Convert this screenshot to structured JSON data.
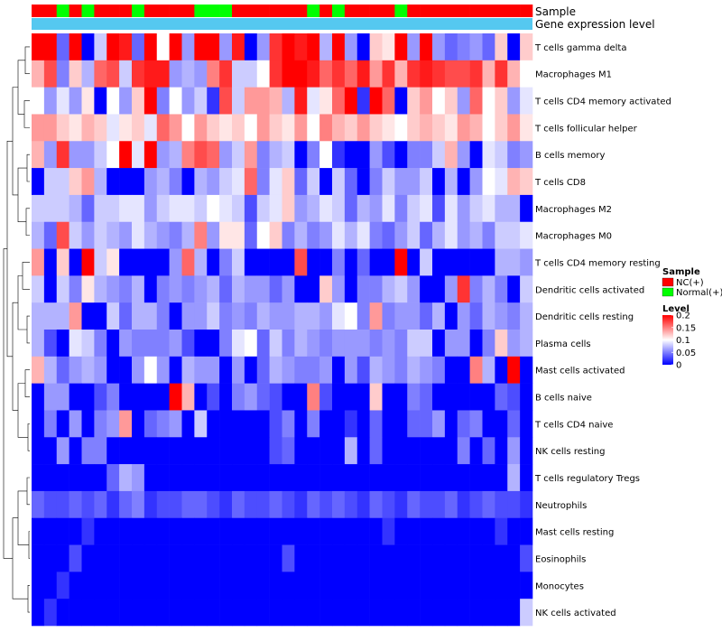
{
  "chart_data": {
    "type": "heatmap",
    "annotation_titles": [
      "Sample",
      "Gene expression level"
    ],
    "rows": [
      "T cells gamma delta",
      "Macrophages M1",
      "T cells CD4 memory activated",
      "T cells follicular helper",
      "B cells memory",
      "T cells CD8",
      "Macrophages M2",
      "Macrophages M0",
      "T cells CD4 memory resting",
      "Dendritic cells activated",
      "Dendritic cells resting",
      "Plasma cells",
      "Mast cells activated",
      "B cells naive",
      "T cells CD4 naive",
      "NK cells resting",
      "T cells regulatory  Tregs",
      "Neutrophils",
      "Mast cells resting",
      "Eosinophils",
      "Monocytes",
      "NK cells activated"
    ],
    "n_columns": 40,
    "sample_groups": [
      "NC(+)",
      "NC(+)",
      "Normal(+)",
      "NC(+)",
      "Normal(+)",
      "NC(+)",
      "NC(+)",
      "NC(+)",
      "Normal(+)",
      "NC(+)",
      "NC(+)",
      "NC(+)",
      "NC(+)",
      "Normal(+)",
      "Normal(+)",
      "Normal(+)",
      "NC(+)",
      "NC(+)",
      "NC(+)",
      "NC(+)",
      "NC(+)",
      "NC(+)",
      "Normal(+)",
      "NC(+)",
      "Normal(+)",
      "NC(+)",
      "NC(+)",
      "NC(+)",
      "NC(+)",
      "Normal(+)",
      "NC(+)",
      "NC(+)",
      "NC(+)",
      "NC(+)",
      "NC(+)",
      "NC(+)",
      "NC(+)",
      "NC(+)",
      "NC(+)",
      "NC(+)"
    ],
    "values": [
      [
        0.22,
        0.21,
        0.04,
        0.22,
        0.0,
        0.08,
        0.21,
        0.19,
        0.04,
        0.21,
        0.1,
        0.22,
        0.06,
        0.22,
        0.2,
        0.06,
        0.19,
        0.0,
        0.06,
        0.18,
        0.2,
        0.19,
        0.22,
        0.07,
        0.21,
        0.06,
        0.0,
        0.12,
        0.11,
        0.2,
        0.06,
        0.22,
        0.06,
        0.04,
        0.05,
        0.06,
        0.04,
        0.12,
        0.0,
        0.12
      ],
      [
        0.13,
        0.17,
        0.05,
        0.12,
        0.07,
        0.16,
        0.17,
        0.08,
        0.18,
        0.19,
        0.19,
        0.06,
        0.07,
        0.06,
        0.15,
        0.18,
        0.08,
        0.08,
        0.1,
        0.18,
        0.2,
        0.22,
        0.19,
        0.16,
        0.18,
        0.16,
        0.19,
        0.14,
        0.18,
        0.13,
        0.18,
        0.19,
        0.18,
        0.17,
        0.17,
        0.18,
        0.13,
        0.18,
        0.13,
        0.1
      ],
      [
        0.1,
        0.06,
        0.09,
        0.06,
        0.11,
        0.0,
        0.1,
        0.06,
        0.12,
        0.23,
        0.05,
        0.1,
        0.06,
        0.08,
        0.02,
        0.17,
        0.08,
        0.14,
        0.14,
        0.13,
        0.07,
        0.19,
        0.09,
        0.11,
        0.16,
        0.22,
        0.02,
        0.24,
        0.16,
        0.0,
        0.12,
        0.14,
        0.1,
        0.12,
        0.06,
        0.16,
        0.1,
        0.12,
        0.06,
        0.09
      ],
      [
        0.14,
        0.14,
        0.12,
        0.11,
        0.13,
        0.12,
        0.09,
        0.11,
        0.12,
        0.09,
        0.16,
        0.14,
        0.1,
        0.14,
        0.12,
        0.11,
        0.12,
        0.1,
        0.14,
        0.12,
        0.11,
        0.14,
        0.1,
        0.15,
        0.13,
        0.12,
        0.14,
        0.12,
        0.11,
        0.1,
        0.12,
        0.13,
        0.12,
        0.11,
        0.14,
        0.13,
        0.1,
        0.12,
        0.14,
        0.11
      ],
      [
        0.13,
        0.06,
        0.18,
        0.06,
        0.06,
        0.08,
        0.1,
        0.22,
        0.09,
        0.23,
        0.06,
        0.07,
        0.15,
        0.17,
        0.16,
        0.06,
        0.08,
        0.14,
        0.05,
        0.07,
        0.08,
        0.0,
        0.05,
        0.1,
        0.02,
        0.0,
        0.0,
        0.06,
        0.03,
        0.0,
        0.05,
        0.05,
        0.08,
        0.13,
        0.06,
        0.0,
        0.09,
        0.08,
        0.05,
        0.06
      ],
      [
        0.0,
        0.08,
        0.08,
        0.12,
        0.14,
        0.07,
        0.0,
        0.0,
        0.0,
        0.06,
        0.07,
        0.05,
        0.0,
        0.07,
        0.06,
        0.08,
        0.09,
        0.16,
        0.05,
        0.09,
        0.12,
        0.04,
        0.08,
        0.0,
        0.08,
        0.04,
        0.0,
        0.05,
        0.08,
        0.06,
        0.06,
        0.08,
        0.0,
        0.07,
        0.0,
        0.06,
        0.1,
        0.09,
        0.13,
        0.12
      ],
      [
        0.08,
        0.08,
        0.08,
        0.07,
        0.04,
        0.08,
        0.08,
        0.09,
        0.09,
        0.06,
        0.08,
        0.09,
        0.09,
        0.08,
        0.1,
        0.09,
        0.08,
        0.03,
        0.08,
        0.09,
        0.12,
        0.06,
        0.07,
        0.09,
        0.08,
        0.04,
        0.07,
        0.06,
        0.09,
        0.05,
        0.08,
        0.09,
        0.03,
        0.09,
        0.06,
        0.08,
        0.09,
        0.07,
        0.07,
        0.0
      ],
      [
        0.07,
        0.04,
        0.17,
        0.08,
        0.06,
        0.08,
        0.07,
        0.06,
        0.09,
        0.07,
        0.06,
        0.05,
        0.07,
        0.15,
        0.06,
        0.11,
        0.11,
        0.04,
        0.1,
        0.12,
        0.05,
        0.07,
        0.05,
        0.06,
        0.09,
        0.07,
        0.09,
        0.05,
        0.04,
        0.06,
        0.08,
        0.04,
        0.07,
        0.09,
        0.06,
        0.07,
        0.05,
        0.08,
        0.08,
        0.09
      ],
      [
        0.14,
        0.0,
        0.12,
        0.0,
        0.2,
        0.08,
        0.11,
        0.0,
        0.0,
        0.0,
        0.0,
        0.06,
        0.16,
        0.07,
        0.0,
        0.05,
        0.08,
        0.0,
        0.0,
        0.0,
        0.0,
        0.17,
        0.0,
        0.0,
        0.05,
        0.0,
        0.04,
        0.0,
        0.0,
        0.2,
        0.0,
        0.08,
        0.0,
        0.0,
        0.0,
        0.0,
        0.0,
        0.07,
        0.07,
        0.06
      ],
      [
        0.08,
        0.0,
        0.08,
        0.05,
        0.11,
        0.07,
        0.06,
        0.05,
        0.07,
        0.0,
        0.05,
        0.06,
        0.05,
        0.06,
        0.07,
        0.04,
        0.07,
        0.06,
        0.06,
        0.04,
        0.06,
        0.0,
        0.0,
        0.12,
        0.06,
        0.0,
        0.05,
        0.05,
        0.07,
        0.08,
        0.06,
        0.0,
        0.0,
        0.06,
        0.18,
        0.05,
        0.07,
        0.05,
        0.0,
        0.08
      ],
      [
        0.07,
        0.07,
        0.07,
        0.14,
        0.0,
        0.0,
        0.08,
        0.04,
        0.07,
        0.07,
        0.05,
        0.0,
        0.06,
        0.06,
        0.08,
        0.05,
        0.06,
        0.05,
        0.07,
        0.06,
        0.06,
        0.07,
        0.07,
        0.06,
        0.09,
        0.1,
        0.05,
        0.14,
        0.05,
        0.06,
        0.06,
        0.04,
        0.07,
        0.0,
        0.06,
        0.04,
        0.07,
        0.06,
        0.05,
        0.07
      ],
      [
        0.07,
        0.03,
        0.0,
        0.09,
        0.08,
        0.05,
        0.0,
        0.06,
        0.05,
        0.05,
        0.05,
        0.06,
        0.03,
        0.0,
        0.0,
        0.05,
        0.09,
        0.1,
        0.04,
        0.08,
        0.05,
        0.07,
        0.06,
        0.05,
        0.06,
        0.06,
        0.06,
        0.05,
        0.06,
        0.05,
        0.08,
        0.08,
        0.0,
        0.06,
        0.06,
        0.0,
        0.05,
        0.12,
        0.06,
        0.07
      ],
      [
        0.13,
        0.07,
        0.04,
        0.06,
        0.07,
        0.06,
        0.0,
        0.0,
        0.06,
        0.1,
        0.06,
        0.0,
        0.07,
        0.06,
        0.06,
        0.0,
        0.06,
        0.0,
        0.04,
        0.07,
        0.06,
        0.05,
        0.05,
        0.06,
        0.0,
        0.06,
        0.03,
        0.07,
        0.06,
        0.05,
        0.07,
        0.06,
        0.05,
        0.0,
        0.0,
        0.15,
        0.07,
        0.0,
        0.21,
        0.0
      ],
      [
        0.0,
        0.06,
        0.06,
        0.0,
        0.0,
        0.03,
        0.05,
        0.0,
        0.0,
        0.0,
        0.0,
        0.22,
        0.13,
        0.0,
        0.03,
        0.0,
        0.05,
        0.06,
        0.04,
        0.03,
        0.0,
        0.0,
        0.15,
        0.03,
        0.0,
        0.0,
        0.0,
        0.12,
        0.0,
        0.0,
        0.05,
        0.04,
        0.0,
        0.0,
        0.0,
        0.0,
        0.0,
        0.04,
        0.03,
        0.0
      ],
      [
        0.0,
        0.05,
        0.0,
        0.06,
        0.0,
        0.05,
        0.06,
        0.14,
        0.0,
        0.04,
        0.05,
        0.06,
        0.0,
        0.08,
        0.0,
        0.0,
        0.0,
        0.0,
        0.0,
        0.03,
        0.05,
        0.0,
        0.05,
        0.0,
        0.0,
        0.02,
        0.0,
        0.04,
        0.0,
        0.0,
        0.04,
        0.04,
        0.06,
        0.0,
        0.04,
        0.05,
        0.0,
        0.0,
        0.04,
        0.0
      ],
      [
        0.0,
        0.0,
        0.06,
        0.0,
        0.05,
        0.05,
        0.0,
        0.0,
        0.0,
        0.0,
        0.0,
        0.0,
        0.0,
        0.0,
        0.0,
        0.0,
        0.0,
        0.0,
        0.0,
        0.03,
        0.04,
        0.0,
        0.0,
        0.0,
        0.0,
        0.07,
        0.0,
        0.04,
        0.0,
        0.0,
        0.0,
        0.0,
        0.0,
        0.0,
        0.05,
        0.0,
        0.04,
        0.0,
        0.06,
        0.0
      ],
      [
        0.0,
        0.0,
        0.0,
        0.0,
        0.0,
        0.0,
        0.04,
        0.07,
        0.06,
        0.0,
        0.0,
        0.0,
        0.0,
        0.0,
        0.0,
        0.0,
        0.0,
        0.0,
        0.0,
        0.0,
        0.0,
        0.0,
        0.0,
        0.0,
        0.0,
        0.0,
        0.0,
        0.0,
        0.0,
        0.0,
        0.0,
        0.0,
        0.0,
        0.0,
        0.0,
        0.0,
        0.0,
        0.0,
        0.07,
        0.0
      ],
      [
        0.04,
        0.03,
        0.03,
        0.04,
        0.03,
        0.04,
        0.02,
        0.04,
        0.05,
        0.02,
        0.03,
        0.03,
        0.04,
        0.04,
        0.03,
        0.02,
        0.04,
        0.03,
        0.03,
        0.04,
        0.03,
        0.02,
        0.04,
        0.03,
        0.04,
        0.03,
        0.02,
        0.04,
        0.03,
        0.02,
        0.04,
        0.03,
        0.03,
        0.04,
        0.02,
        0.03,
        0.04,
        0.03,
        0.03,
        0.02
      ],
      [
        0.0,
        0.0,
        0.0,
        0.0,
        0.02,
        0.0,
        0.0,
        0.0,
        0.0,
        0.0,
        0.0,
        0.0,
        0.0,
        0.0,
        0.0,
        0.0,
        0.0,
        0.0,
        0.0,
        0.0,
        0.0,
        0.0,
        0.0,
        0.0,
        0.0,
        0.0,
        0.0,
        0.0,
        0.02,
        0.0,
        0.0,
        0.0,
        0.0,
        0.0,
        0.0,
        0.0,
        0.0,
        0.02,
        0.0,
        0.0
      ],
      [
        0.0,
        0.0,
        0.0,
        0.03,
        0.0,
        0.0,
        0.0,
        0.0,
        0.0,
        0.0,
        0.0,
        0.0,
        0.0,
        0.0,
        0.0,
        0.0,
        0.0,
        0.0,
        0.0,
        0.0,
        0.03,
        0.0,
        0.0,
        0.0,
        0.0,
        0.0,
        0.0,
        0.0,
        0.0,
        0.0,
        0.0,
        0.0,
        0.0,
        0.0,
        0.0,
        0.0,
        0.0,
        0.0,
        0.0,
        0.03
      ],
      [
        0.0,
        0.0,
        0.02,
        0.0,
        0.0,
        0.0,
        0.0,
        0.0,
        0.0,
        0.0,
        0.0,
        0.0,
        0.0,
        0.0,
        0.0,
        0.0,
        0.0,
        0.0,
        0.0,
        0.0,
        0.0,
        0.0,
        0.0,
        0.0,
        0.0,
        0.0,
        0.0,
        0.0,
        0.0,
        0.0,
        0.0,
        0.0,
        0.0,
        0.0,
        0.0,
        0.0,
        0.0,
        0.0,
        0.0,
        0.0
      ],
      [
        0.0,
        0.02,
        0.0,
        0.0,
        0.0,
        0.0,
        0.0,
        0.0,
        0.0,
        0.0,
        0.0,
        0.0,
        0.0,
        0.0,
        0.0,
        0.0,
        0.0,
        0.0,
        0.0,
        0.0,
        0.0,
        0.0,
        0.0,
        0.0,
        0.0,
        0.0,
        0.0,
        0.0,
        0.0,
        0.0,
        0.0,
        0.0,
        0.0,
        0.0,
        0.0,
        0.0,
        0.0,
        0.0,
        0.0,
        0.08
      ]
    ],
    "color_scale": {
      "title": "Level",
      "stops": [
        {
          "value": 0,
          "color": "#0000ff"
        },
        {
          "value": 0.1,
          "color": "#ffffff"
        },
        {
          "value": 0.2,
          "color": "#ff0000"
        }
      ],
      "ticks": [
        "0.2",
        "0.15",
        "0.1",
        "0.05",
        "0"
      ],
      "tick_values": [
        0.2,
        0.15,
        0.1,
        0.05,
        0
      ]
    },
    "legend": {
      "title": "Sample",
      "entries": [
        {
          "label": "NC(+)",
          "color": "#ff0000"
        },
        {
          "label": "Normal(+)",
          "color": "#00ff00"
        }
      ],
      "placement": "right"
    },
    "gene_expression_color": "#55c8f0"
  }
}
